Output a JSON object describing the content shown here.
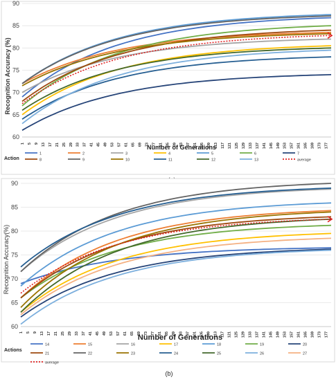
{
  "chart_data": [
    {
      "type": "line",
      "panel_label": "(a)",
      "xlabel": "Number of Generations",
      "ylabel": "Recognition Accuracy (%)",
      "ylim": [
        60,
        90
      ],
      "yticks": [
        60,
        65,
        70,
        75,
        80,
        85,
        90
      ],
      "xlim": [
        1,
        180
      ],
      "xticks": [
        1,
        5,
        9,
        13,
        17,
        21,
        25,
        29,
        33,
        37,
        41,
        45,
        49,
        53,
        57,
        61,
        65,
        69,
        73,
        77,
        81,
        85,
        89,
        93,
        97,
        101,
        105,
        109,
        113,
        117,
        121,
        125,
        129,
        133,
        137,
        141,
        145,
        149,
        153,
        157,
        161,
        165,
        169,
        173,
        177
      ],
      "grid": "horizontal",
      "legend_title": "Action",
      "legend_position": "bottom",
      "series": [
        {
          "name": "1",
          "color": "#4472c4",
          "start": 69.0,
          "end": 86.8,
          "dashed": false
        },
        {
          "name": "2",
          "color": "#ed7d31",
          "start": 72.0,
          "end": 83.5,
          "dashed": false
        },
        {
          "name": "3",
          "color": "#a5a5a5",
          "start": 70.0,
          "end": 82.0,
          "dashed": false
        },
        {
          "name": "4",
          "color": "#ffc000",
          "start": 65.0,
          "end": 80.5,
          "dashed": false
        },
        {
          "name": "5",
          "color": "#5b9bd5",
          "start": 72.0,
          "end": 87.5,
          "dashed": false
        },
        {
          "name": "6",
          "color": "#70ad47",
          "start": 67.0,
          "end": 85.0,
          "dashed": false
        },
        {
          "name": "7",
          "color": "#264478",
          "start": 61.5,
          "end": 74.0,
          "dashed": false
        },
        {
          "name": "8",
          "color": "#9e480e",
          "start": 68.0,
          "end": 84.0,
          "dashed": false
        },
        {
          "name": "9",
          "color": "#636363",
          "start": 72.0,
          "end": 87.2,
          "dashed": false
        },
        {
          "name": "10",
          "color": "#997300",
          "start": 71.5,
          "end": 83.2,
          "dashed": false
        },
        {
          "name": "11",
          "color": "#255e91",
          "start": 64.0,
          "end": 78.0,
          "dashed": false
        },
        {
          "name": "12",
          "color": "#43682b",
          "start": 66.0,
          "end": 80.0,
          "dashed": false
        },
        {
          "name": "13",
          "color": "#7cafdd",
          "start": 63.0,
          "end": 79.5,
          "dashed": false
        },
        {
          "name": "average",
          "color": "#e02020",
          "start": 67.5,
          "end": 82.8,
          "dashed": true
        }
      ]
    },
    {
      "type": "line",
      "panel_label": "(b)",
      "xlabel": "Number of Generations",
      "ylabel": "Recognition Accuracy(%)",
      "ylim": [
        60,
        90
      ],
      "yticks": [
        60,
        65,
        70,
        75,
        80,
        85,
        90
      ],
      "xlim": [
        1,
        180
      ],
      "xticks": [
        1,
        5,
        9,
        13,
        17,
        21,
        25,
        29,
        33,
        37,
        41,
        45,
        49,
        53,
        57,
        61,
        65,
        69,
        73,
        77,
        81,
        85,
        89,
        93,
        97,
        101,
        105,
        109,
        113,
        117,
        121,
        125,
        129,
        133,
        137,
        141,
        145,
        149,
        153,
        157,
        161,
        165,
        169,
        173,
        177
      ],
      "grid": "horizontal",
      "legend_title": "Actions",
      "legend_position": "bottom",
      "series": [
        {
          "name": "14",
          "color": "#4472c4",
          "start": 69.0,
          "end": 76.5,
          "dashed": false
        },
        {
          "name": "15",
          "color": "#ed7d31",
          "start": 66.0,
          "end": 84.3,
          "dashed": false
        },
        {
          "name": "16",
          "color": "#a5a5a5",
          "start": 71.5,
          "end": 88.8,
          "dashed": false
        },
        {
          "name": "17",
          "color": "#ffc000",
          "start": 63.0,
          "end": 79.5,
          "dashed": false
        },
        {
          "name": "18",
          "color": "#5b9bd5",
          "start": 68.5,
          "end": 85.9,
          "dashed": false
        },
        {
          "name": "19",
          "color": "#70ad47",
          "start": 66.0,
          "end": 81.2,
          "dashed": false
        },
        {
          "name": "20",
          "color": "#264478",
          "start": 62.0,
          "end": 76.2,
          "dashed": false
        },
        {
          "name": "21",
          "color": "#9e480e",
          "start": 66.0,
          "end": 83.0,
          "dashed": false
        },
        {
          "name": "22",
          "color": "#636363",
          "start": 71.5,
          "end": 90.0,
          "dashed": false
        },
        {
          "name": "23",
          "color": "#997300",
          "start": 64.0,
          "end": 84.0,
          "dashed": false
        },
        {
          "name": "24",
          "color": "#255e91",
          "start": 72.5,
          "end": 89.0,
          "dashed": false
        },
        {
          "name": "25",
          "color": "#43682b",
          "start": 63.0,
          "end": 82.5,
          "dashed": false
        },
        {
          "name": "26",
          "color": "#7cafdd",
          "start": 60.5,
          "end": 76.0,
          "dashed": false
        },
        {
          "name": "27",
          "color": "#f4b183",
          "start": 62.5,
          "end": 78.5,
          "dashed": false
        },
        {
          "name": "average",
          "color": "#e02020",
          "start": 67.0,
          "end": 82.5,
          "dashed": true
        }
      ]
    }
  ]
}
